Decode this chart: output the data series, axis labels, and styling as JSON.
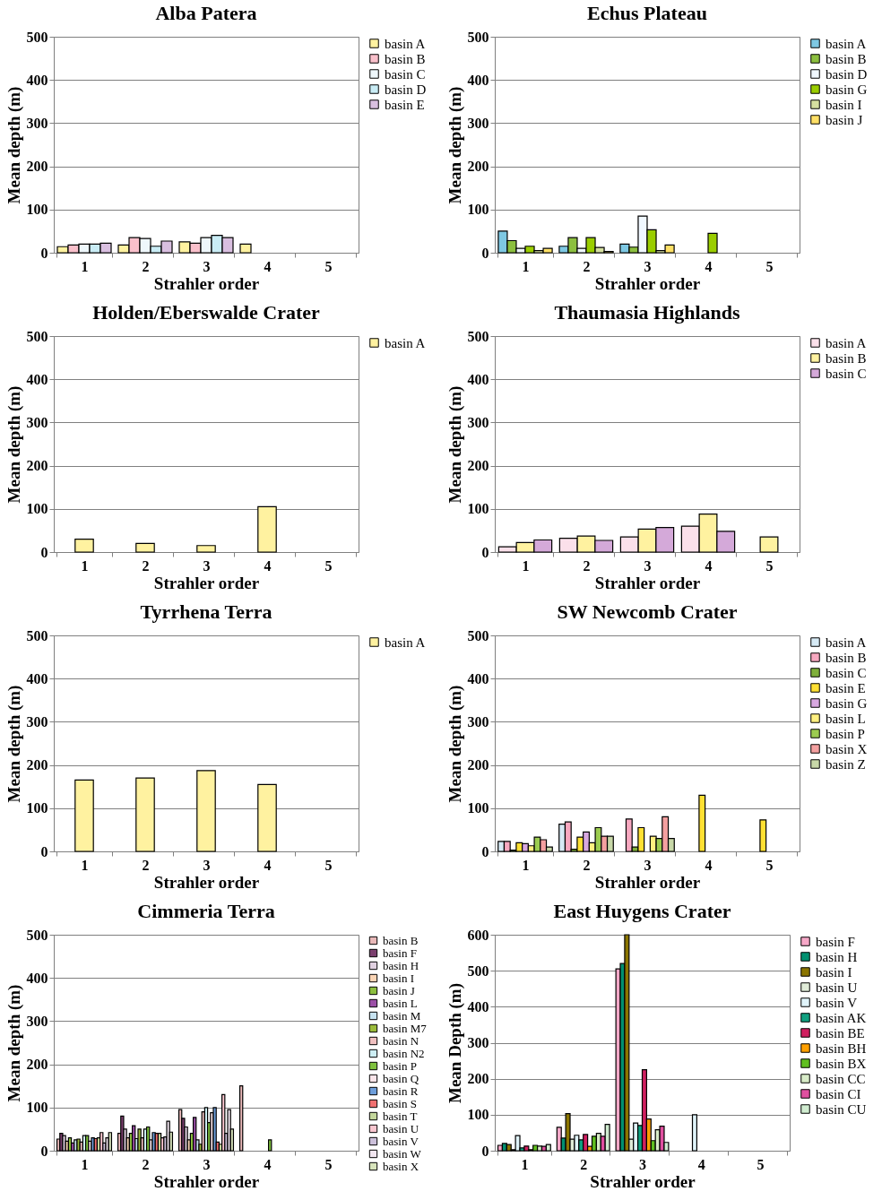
{
  "chart_data": [
    {
      "type": "bar",
      "title": "Alba Patera",
      "xlabel": "Strahler order",
      "ylabel": "Mean depth (m)",
      "categories": [
        "1",
        "2",
        "3",
        "4",
        "5"
      ],
      "ylim": [
        0,
        500
      ],
      "yticks": [
        0,
        100,
        200,
        300,
        400,
        500
      ],
      "grid": "y",
      "legend": "right",
      "series": [
        {
          "name": "basin A",
          "color": "#fff2a0",
          "values": [
            14,
            18,
            25,
            20,
            null
          ]
        },
        {
          "name": "basin B",
          "color": "#f9c0cb",
          "values": [
            18,
            35,
            22,
            null,
            null
          ]
        },
        {
          "name": "basin C",
          "color": "#eef7fb",
          "values": [
            20,
            33,
            35,
            null,
            null
          ]
        },
        {
          "name": "basin D",
          "color": "#c9ecf5",
          "values": [
            20,
            15,
            40,
            null,
            null
          ]
        },
        {
          "name": "basin E",
          "color": "#d9bfe0",
          "values": [
            22,
            27,
            35,
            null,
            null
          ]
        }
      ]
    },
    {
      "type": "bar",
      "title": "Echus Plateau",
      "xlabel": "Strahler order",
      "ylabel": "Mean depth (m)",
      "categories": [
        "1",
        "2",
        "3",
        "4",
        "5"
      ],
      "ylim": [
        0,
        500
      ],
      "yticks": [
        0,
        100,
        200,
        300,
        400,
        500
      ],
      "grid": "y",
      "legend": "right",
      "series": [
        {
          "name": "basin A",
          "color": "#7ec8e3",
          "values": [
            50,
            15,
            20,
            null,
            null
          ]
        },
        {
          "name": "basin B",
          "color": "#8cbf3f",
          "values": [
            28,
            35,
            13,
            null,
            null
          ]
        },
        {
          "name": "basin D",
          "color": "#f0f8ff",
          "values": [
            10,
            10,
            85,
            null,
            null
          ]
        },
        {
          "name": "basin G",
          "color": "#9acd00",
          "values": [
            15,
            35,
            53,
            45,
            null
          ]
        },
        {
          "name": "basin I",
          "color": "#d6e0a0",
          "values": [
            5,
            12,
            5,
            null,
            null
          ]
        },
        {
          "name": "basin J",
          "color": "#ffe066",
          "values": [
            10,
            3,
            18,
            null,
            null
          ]
        }
      ]
    },
    {
      "type": "bar",
      "title": "Holden/Eberswalde Crater",
      "xlabel": "Strahler order",
      "ylabel": "Mean depth (m)",
      "categories": [
        "1",
        "2",
        "3",
        "4",
        "5"
      ],
      "ylim": [
        0,
        500
      ],
      "yticks": [
        0,
        100,
        200,
        300,
        400,
        500
      ],
      "grid": "y",
      "legend": "right",
      "series": [
        {
          "name": "basin A",
          "color": "#fff2a0",
          "values": [
            30,
            20,
            15,
            105,
            null
          ]
        }
      ]
    },
    {
      "type": "bar",
      "title": "Thaumasia Highlands",
      "xlabel": "Strahler order",
      "ylabel": "Mean depth (m)",
      "categories": [
        "1",
        "2",
        "3",
        "4",
        "5"
      ],
      "ylim": [
        0,
        500
      ],
      "yticks": [
        0,
        100,
        200,
        300,
        400,
        500
      ],
      "grid": "y",
      "legend": "right",
      "series": [
        {
          "name": "basin A",
          "color": "#fbe0ea",
          "values": [
            12,
            32,
            35,
            60,
            null
          ]
        },
        {
          "name": "basin B",
          "color": "#fff2a0",
          "values": [
            22,
            37,
            53,
            88,
            35
          ]
        },
        {
          "name": "basin C",
          "color": "#d4a9d9",
          "values": [
            28,
            27,
            57,
            48,
            null
          ]
        }
      ]
    },
    {
      "type": "bar",
      "title": "Tyrrhena Terra",
      "xlabel": "Strahler order",
      "ylabel": "Mean depth (m)",
      "categories": [
        "1",
        "2",
        "3",
        "4",
        "5"
      ],
      "ylim": [
        0,
        500
      ],
      "yticks": [
        0,
        100,
        200,
        300,
        400,
        500
      ],
      "grid": "y",
      "legend": "right",
      "series": [
        {
          "name": "basin A",
          "color": "#fff2a0",
          "values": [
            165,
            170,
            187,
            155,
            null
          ]
        }
      ]
    },
    {
      "type": "bar",
      "title": "SW Newcomb Crater",
      "xlabel": "Strahler order",
      "ylabel": "Mean depth (m)",
      "categories": [
        "1",
        "2",
        "3",
        "4",
        "5"
      ],
      "ylim": [
        0,
        500
      ],
      "yticks": [
        0,
        100,
        200,
        300,
        400,
        500
      ],
      "grid": "y",
      "legend": "right",
      "series": [
        {
          "name": "basin A",
          "color": "#d6eaf5",
          "values": [
            23,
            63,
            null,
            null,
            null
          ]
        },
        {
          "name": "basin B",
          "color": "#f7a8c0",
          "values": [
            23,
            68,
            75,
            null,
            null
          ]
        },
        {
          "name": "basin C",
          "color": "#7fb03a",
          "values": [
            3,
            5,
            10,
            null,
            null
          ]
        },
        {
          "name": "basin E",
          "color": "#ffe033",
          "values": [
            20,
            33,
            55,
            130,
            73
          ]
        },
        {
          "name": "basin G",
          "color": "#d8a8e0",
          "values": [
            18,
            45,
            null,
            null,
            null
          ]
        },
        {
          "name": "basin L",
          "color": "#fff080",
          "values": [
            13,
            20,
            35,
            null,
            null
          ]
        },
        {
          "name": "basin P",
          "color": "#9ccc50",
          "values": [
            33,
            55,
            30,
            null,
            null
          ]
        },
        {
          "name": "basin X",
          "color": "#f4a0a0",
          "values": [
            27,
            35,
            80,
            null,
            null
          ]
        },
        {
          "name": "basin Z",
          "color": "#c8d8a8",
          "values": [
            10,
            35,
            30,
            null,
            null
          ]
        }
      ]
    },
    {
      "type": "bar",
      "title": "Cimmeria Terra",
      "xlabel": "Strahler order",
      "ylabel": "Mean depth (m)",
      "categories": [
        "1",
        "2",
        "3",
        "4",
        "5"
      ],
      "ylim": [
        0,
        500
      ],
      "yticks": [
        0,
        100,
        200,
        300,
        400,
        500
      ],
      "grid": "y",
      "legend": "right",
      "series": [
        {
          "name": "basin B",
          "color": "#e8b8b8",
          "values": [
            27,
            40,
            95,
            150,
            null
          ]
        },
        {
          "name": "basin F",
          "color": "#7b3f6e",
          "values": [
            40,
            80,
            75,
            null,
            null
          ]
        },
        {
          "name": "basin H",
          "color": "#e0d0e0",
          "values": [
            35,
            50,
            55,
            null,
            null
          ]
        },
        {
          "name": "basin I",
          "color": "#fbd5b5",
          "values": [
            22,
            30,
            25,
            null,
            null
          ]
        },
        {
          "name": "basin J",
          "color": "#8cbf3f",
          "values": [
            30,
            40,
            40,
            null,
            null
          ]
        },
        {
          "name": "basin L",
          "color": "#9b4fa6",
          "values": [
            18,
            58,
            77,
            null,
            null
          ]
        },
        {
          "name": "basin M",
          "color": "#c6e2f0",
          "values": [
            25,
            28,
            25,
            null,
            null
          ]
        },
        {
          "name": "basin M7",
          "color": "#9bbb3b",
          "values": [
            27,
            50,
            15,
            null,
            null
          ]
        },
        {
          "name": "basin N",
          "color": "#f0c0c0",
          "values": [
            20,
            30,
            90,
            null,
            null
          ]
        },
        {
          "name": "basin N2",
          "color": "#cdeef4",
          "values": [
            35,
            50,
            100,
            null,
            null
          ]
        },
        {
          "name": "basin P",
          "color": "#7fc13e",
          "values": [
            35,
            55,
            65,
            25,
            null
          ]
        },
        {
          "name": "basin Q",
          "color": "#fbe5ea",
          "values": [
            22,
            25,
            88,
            null,
            null
          ]
        },
        {
          "name": "basin R",
          "color": "#6d9edb",
          "values": [
            30,
            42,
            100,
            null,
            null
          ]
        },
        {
          "name": "basin S",
          "color": "#f07070",
          "values": [
            28,
            40,
            20,
            null,
            null
          ]
        },
        {
          "name": "basin T",
          "color": "#c3d69b",
          "values": [
            30,
            40,
            15,
            null,
            null
          ]
        },
        {
          "name": "basin U",
          "color": "#f9c6cf",
          "values": [
            42,
            30,
            130,
            null,
            null
          ]
        },
        {
          "name": "basin V",
          "color": "#ccc0da",
          "values": [
            18,
            32,
            40,
            null,
            null
          ]
        },
        {
          "name": "basin W",
          "color": "#f2e6f0",
          "values": [
            30,
            68,
            95,
            null,
            null
          ]
        },
        {
          "name": "basin X",
          "color": "#d8e4bc",
          "values": [
            42,
            43,
            50,
            null,
            null
          ]
        }
      ]
    },
    {
      "type": "bar",
      "title": "East Huygens Crater",
      "xlabel": "Strahler order",
      "ylabel": "Mean Depth (m)",
      "categories": [
        "1",
        "2",
        "3",
        "4",
        "5"
      ],
      "ylim": [
        0,
        600
      ],
      "yticks": [
        0,
        100,
        200,
        300,
        400,
        500,
        600
      ],
      "grid": "y",
      "legend": "right",
      "series": [
        {
          "name": "basin F",
          "color": "#f7a8c8",
          "values": [
            15,
            65,
            505,
            null,
            null
          ]
        },
        {
          "name": "basin H",
          "color": "#009070",
          "values": [
            20,
            35,
            520,
            null,
            null
          ]
        },
        {
          "name": "basin I",
          "color": "#8b7500",
          "values": [
            17,
            103,
            600,
            null,
            null
          ]
        },
        {
          "name": "basin U",
          "color": "#e0ecd8",
          "values": [
            3,
            32,
            32,
            null,
            null
          ]
        },
        {
          "name": "basin V",
          "color": "#e0f4fa",
          "values": [
            42,
            43,
            77,
            100,
            null
          ]
        },
        {
          "name": "basin AK",
          "color": "#10a080",
          "values": [
            8,
            30,
            70,
            null,
            null
          ]
        },
        {
          "name": "basin BE",
          "color": "#d02060",
          "values": [
            13,
            45,
            225,
            null,
            null
          ]
        },
        {
          "name": "basin BH",
          "color": "#ffa000",
          "values": [
            3,
            12,
            88,
            null,
            null
          ]
        },
        {
          "name": "basin BX",
          "color": "#60c020",
          "values": [
            15,
            40,
            28,
            null,
            null
          ]
        },
        {
          "name": "basin CC",
          "color": "#d8ecc8",
          "values": [
            13,
            48,
            58,
            null,
            null
          ]
        },
        {
          "name": "basin CI",
          "color": "#e050a0",
          "values": [
            12,
            40,
            68,
            null,
            null
          ]
        },
        {
          "name": "basin CU",
          "color": "#d0ecd0",
          "values": [
            17,
            73,
            23,
            null,
            null
          ]
        }
      ]
    }
  ]
}
